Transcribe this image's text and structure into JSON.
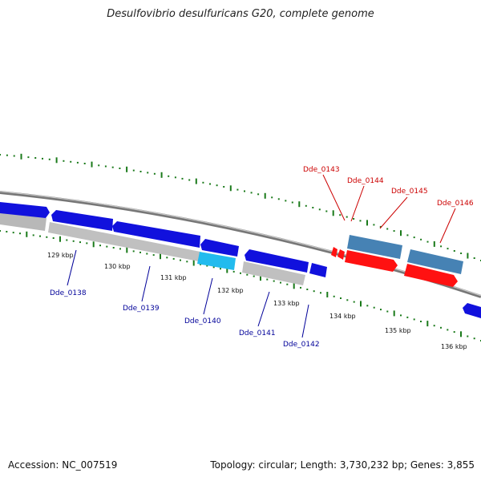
{
  "title": "Desulfovibrio desulfuricans G20, complete genome",
  "footer": {
    "accession": "Accession: NC_007519",
    "summary": "Topology: circular; Length: 3,730,232 bp; Genes: 3,855"
  },
  "colors": {
    "forward_gene": "#1111dd",
    "reverse_gene": "#cc0000",
    "highlight_gene": "#22bbee",
    "steelblue_gene": "#4682b4",
    "rna_gray": "#b8b8b8",
    "backbone": "#808080",
    "tick": "#1a7a1a",
    "label_blue": "#000099",
    "label_red": "#cc0000"
  },
  "scale_labels": [
    "129 kbp",
    "130 kbp",
    "131 kbp",
    "132 kbp",
    "133 kbp",
    "134 kbp",
    "135 kbp",
    "136 kbp"
  ],
  "gene_labels": [
    {
      "text": "Dde_0138",
      "color": "blue"
    },
    {
      "text": "Dde_0139",
      "color": "blue"
    },
    {
      "text": "Dde_0140",
      "color": "blue"
    },
    {
      "text": "Dde_0141",
      "color": "blue"
    },
    {
      "text": "Dde_0142",
      "color": "blue"
    },
    {
      "text": "Dde_0143",
      "color": "red"
    },
    {
      "text": "Dde_0144",
      "color": "red"
    },
    {
      "text": "Dde_0145",
      "color": "red"
    },
    {
      "text": "Dde_0146",
      "color": "red"
    }
  ]
}
